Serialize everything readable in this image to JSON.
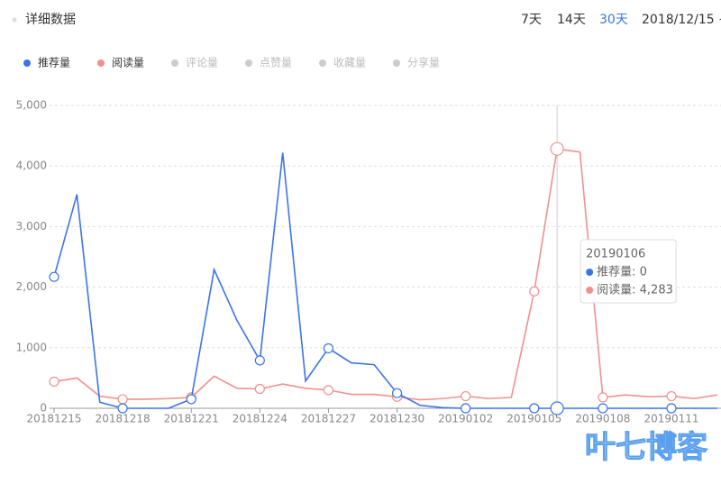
{
  "header": {
    "title": "详细数据",
    "ranges": [
      "7天",
      "14天",
      "30天"
    ],
    "date_range": "2018/12/15 ~"
  },
  "legend_inactive": [
    "评论量",
    "点赞量",
    "收藏量",
    "分享量"
  ],
  "chart_data": {
    "type": "line",
    "categories": [
      "20181215",
      null,
      null,
      "20181218",
      null,
      null,
      "20181221",
      null,
      null,
      "20181224",
      null,
      null,
      "20181227",
      null,
      null,
      "20181230",
      null,
      null,
      "20190102",
      null,
      null,
      "20190105",
      null,
      null,
      "20190108",
      null,
      null,
      "20190111",
      null,
      null
    ],
    "series": [
      {
        "name": "推荐量",
        "color": "#3b74e8",
        "values": [
          2170,
          3530,
          100,
          0,
          0,
          0,
          150,
          2290,
          1450,
          790,
          4220,
          450,
          990,
          750,
          720,
          250,
          50,
          10,
          0,
          0,
          0,
          0,
          0,
          0,
          0,
          0,
          0,
          0,
          0,
          0
        ]
      },
      {
        "name": "阅读量",
        "color": "#f0918f",
        "values": [
          440,
          500,
          200,
          150,
          150,
          160,
          180,
          530,
          330,
          320,
          400,
          330,
          300,
          230,
          230,
          190,
          140,
          160,
          200,
          160,
          180,
          1930,
          4283,
          4230,
          180,
          220,
          190,
          200,
          160,
          220
        ]
      }
    ],
    "ylim": [
      0,
      5000
    ],
    "yticks": [
      0,
      {
        "value": 1000,
        "label": "1,000"
      },
      {
        "value": 2000,
        "label": "2,000"
      },
      {
        "value": 3000,
        "label": "3,000"
      },
      {
        "value": 4000,
        "label": "4,000"
      },
      {
        "value": 5000,
        "label": "5,000"
      }
    ],
    "grid": true,
    "tooltip": {
      "title": "20190106",
      "rows": [
        "推荐量: 0",
        "阅读量: 4,283"
      ]
    }
  },
  "watermark": "叶七博客"
}
